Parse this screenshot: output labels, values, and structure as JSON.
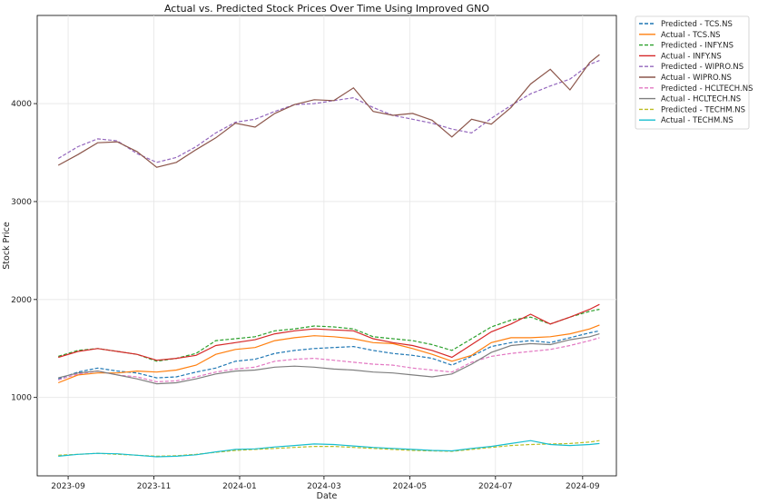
{
  "chart_data": {
    "type": "line",
    "title": "Actual vs. Predicted Stock Prices Over Time Using Improved GNO",
    "xlabel": "Date",
    "ylabel": "Stock Price",
    "xlim": [
      "2023-08-10",
      "2024-09-25"
    ],
    "ylim": [
      200,
      4900
    ],
    "x_ticks": [
      "2023-09",
      "2023-11",
      "2024-01",
      "2024-03",
      "2024-05",
      "2024-07",
      "2024-09"
    ],
    "y_ticks": [
      1000,
      2000,
      3000,
      4000
    ],
    "grid": true,
    "legend_position": "outside-top-right",
    "dates": [
      "2023-08-25",
      "2023-09-08",
      "2023-09-22",
      "2023-10-06",
      "2023-10-20",
      "2023-11-03",
      "2023-11-17",
      "2023-12-01",
      "2023-12-15",
      "2023-12-29",
      "2024-01-12",
      "2024-01-26",
      "2024-02-09",
      "2024-02-23",
      "2024-03-08",
      "2024-03-22",
      "2024-04-05",
      "2024-04-19",
      "2024-05-03",
      "2024-05-17",
      "2024-05-31",
      "2024-06-14",
      "2024-06-28",
      "2024-07-12",
      "2024-07-26",
      "2024-08-09",
      "2024-08-23",
      "2024-09-06",
      "2024-09-13"
    ],
    "series": [
      {
        "name": "Predicted - TCS.NS",
        "color": "#1f77b4",
        "dashed": true,
        "values": [
          1190,
          1260,
          1300,
          1270,
          1250,
          1200,
          1210,
          1260,
          1300,
          1370,
          1390,
          1450,
          1480,
          1500,
          1510,
          1520,
          1480,
          1450,
          1430,
          1400,
          1330,
          1420,
          1520,
          1560,
          1580,
          1560,
          1610,
          1660,
          1680
        ]
      },
      {
        "name": "Actual - TCS.NS",
        "color": "#ff7f0e",
        "dashed": false,
        "values": [
          1150,
          1230,
          1250,
          1250,
          1270,
          1260,
          1280,
          1330,
          1440,
          1490,
          1510,
          1580,
          1610,
          1630,
          1620,
          1600,
          1560,
          1550,
          1500,
          1440,
          1370,
          1430,
          1560,
          1610,
          1610,
          1620,
          1650,
          1700,
          1740
        ]
      },
      {
        "name": "Predicted - INFY.NS",
        "color": "#2ca02c",
        "dashed": true,
        "values": [
          1420,
          1480,
          1500,
          1470,
          1440,
          1370,
          1400,
          1450,
          1580,
          1600,
          1620,
          1680,
          1700,
          1730,
          1720,
          1700,
          1620,
          1600,
          1580,
          1540,
          1480,
          1600,
          1720,
          1790,
          1820,
          1750,
          1820,
          1880,
          1900
        ]
      },
      {
        "name": "Actual - INFY.NS",
        "color": "#d62728",
        "dashed": false,
        "values": [
          1410,
          1470,
          1500,
          1470,
          1440,
          1380,
          1400,
          1430,
          1530,
          1560,
          1590,
          1650,
          1680,
          1700,
          1690,
          1680,
          1600,
          1560,
          1530,
          1480,
          1410,
          1540,
          1670,
          1750,
          1850,
          1750,
          1820,
          1900,
          1950
        ]
      },
      {
        "name": "Predicted - WIPRO.NS",
        "color": "#9467bd",
        "dashed": true,
        "values": [
          3440,
          3560,
          3640,
          3620,
          3490,
          3400,
          3450,
          3560,
          3700,
          3810,
          3840,
          3920,
          3990,
          4000,
          4030,
          4060,
          3960,
          3880,
          3840,
          3800,
          3740,
          3700,
          3850,
          3980,
          4100,
          4180,
          4250,
          4400,
          4440
        ]
      },
      {
        "name": "Actual - WIPRO.NS",
        "color": "#8c564b",
        "dashed": false,
        "values": [
          3370,
          3480,
          3600,
          3610,
          3510,
          3350,
          3400,
          3530,
          3650,
          3800,
          3760,
          3900,
          3990,
          4040,
          4030,
          4160,
          3920,
          3880,
          3900,
          3830,
          3660,
          3840,
          3790,
          3960,
          4200,
          4350,
          4140,
          4420,
          4500
        ]
      },
      {
        "name": "Predicted - HCLTECH.NS",
        "color": "#e377c2",
        "dashed": true,
        "values": [
          1180,
          1240,
          1270,
          1230,
          1210,
          1160,
          1170,
          1210,
          1260,
          1290,
          1310,
          1370,
          1390,
          1400,
          1380,
          1360,
          1340,
          1330,
          1300,
          1280,
          1260,
          1360,
          1420,
          1450,
          1470,
          1490,
          1530,
          1580,
          1610
        ]
      },
      {
        "name": "Actual - HCLTECH.NS",
        "color": "#7f7f7f",
        "dashed": false,
        "values": [
          1200,
          1250,
          1270,
          1230,
          1190,
          1140,
          1150,
          1190,
          1240,
          1270,
          1280,
          1310,
          1320,
          1310,
          1290,
          1280,
          1260,
          1250,
          1230,
          1210,
          1240,
          1340,
          1460,
          1530,
          1550,
          1540,
          1590,
          1620,
          1650
        ]
      },
      {
        "name": "Predicted - TECHM.NS",
        "color": "#bcbd22",
        "dashed": true,
        "values": [
          410,
          420,
          430,
          420,
          410,
          400,
          405,
          420,
          440,
          460,
          470,
          480,
          490,
          500,
          500,
          490,
          480,
          470,
          460,
          455,
          450,
          470,
          490,
          510,
          520,
          525,
          530,
          545,
          560
        ]
      },
      {
        "name": "Actual - TECHM.NS",
        "color": "#17becf",
        "dashed": false,
        "values": [
          400,
          420,
          430,
          425,
          410,
          395,
          400,
          415,
          445,
          470,
          475,
          495,
          510,
          525,
          520,
          505,
          490,
          480,
          470,
          460,
          455,
          480,
          500,
          530,
          560,
          520,
          510,
          520,
          530
        ]
      }
    ]
  }
}
